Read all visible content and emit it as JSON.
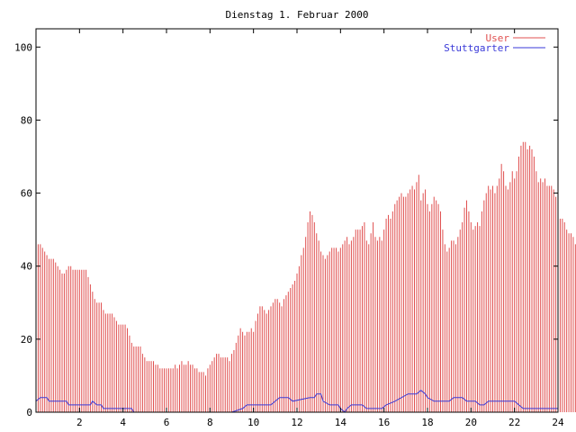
{
  "chart_data": {
    "type": "bar",
    "title": "Dienstag 1. Februar 2000",
    "xlabel": "",
    "ylabel": "",
    "xlim": [
      0,
      24
    ],
    "ylim": [
      0,
      105
    ],
    "x_ticks": [
      2,
      4,
      6,
      8,
      10,
      12,
      14,
      16,
      18,
      20,
      22,
      24
    ],
    "y_ticks": [
      0,
      20,
      40,
      60,
      80,
      100
    ],
    "grid": false,
    "legend_position": "top-right",
    "interval_hours": 0.1,
    "series": [
      {
        "name": "User",
        "style": "impulses",
        "color": "#e05050",
        "values": [
          51,
          46,
          46,
          45,
          44,
          43,
          42,
          42,
          42,
          41,
          40,
          39,
          38,
          38,
          39,
          40,
          40,
          39,
          39,
          39,
          39,
          39,
          39,
          39,
          37,
          35,
          33,
          31,
          30,
          30,
          30,
          28,
          27,
          27,
          27,
          27,
          26,
          25,
          24,
          24,
          24,
          24,
          23,
          21,
          19,
          18,
          18,
          18,
          18,
          16,
          15,
          14,
          14,
          14,
          14,
          13,
          13,
          12,
          12,
          12,
          12,
          12,
          12,
          12,
          13,
          12,
          13,
          14,
          13,
          13,
          14,
          13,
          13,
          12,
          12,
          11,
          11,
          11,
          10,
          12,
          13,
          14,
          15,
          16,
          16,
          15,
          15,
          15,
          15,
          14,
          16,
          17,
          19,
          21,
          23,
          22,
          21,
          22,
          22,
          23,
          22,
          25,
          27,
          29,
          29,
          28,
          27,
          28,
          29,
          30,
          31,
          31,
          30,
          29,
          31,
          32,
          33,
          34,
          35,
          36,
          38,
          40,
          43,
          45,
          48,
          52,
          55,
          54,
          52,
          49,
          47,
          44,
          43,
          42,
          43,
          44,
          45,
          45,
          45,
          44,
          45,
          46,
          47,
          48,
          46,
          47,
          48,
          50,
          50,
          50,
          51,
          52,
          47,
          46,
          49,
          52,
          48,
          47,
          48,
          47,
          50,
          53,
          54,
          53,
          55,
          57,
          58,
          59,
          60,
          59,
          59,
          60,
          61,
          62,
          61,
          63,
          65,
          58,
          60,
          61,
          57,
          55,
          57,
          59,
          58,
          57,
          55,
          50,
          46,
          44,
          45,
          47,
          47,
          46,
          48,
          50,
          52,
          56,
          58,
          55,
          52,
          50,
          51,
          52,
          51,
          55,
          58,
          60,
          62,
          61,
          62,
          60,
          62,
          64,
          68,
          66,
          62,
          61,
          63,
          66,
          64,
          66,
          70,
          73,
          74,
          74,
          72,
          73,
          72,
          70,
          66,
          63,
          64,
          63,
          64,
          62,
          62,
          62,
          61,
          59,
          56,
          53,
          53,
          52,
          50,
          49,
          49,
          48,
          46,
          46,
          45
        ]
      },
      {
        "name": "Stuttgarter",
        "style": "lines",
        "color": "#3a3ad8",
        "points": [
          [
            0,
            3
          ],
          [
            0.2,
            4
          ],
          [
            0.5,
            4
          ],
          [
            0.6,
            3
          ],
          [
            1.4,
            3
          ],
          [
            1.5,
            2
          ],
          [
            2.5,
            2
          ],
          [
            2.6,
            3
          ],
          [
            2.8,
            2
          ],
          [
            3.0,
            2
          ],
          [
            3.1,
            1
          ],
          [
            4.4,
            1
          ],
          [
            4.5,
            0
          ],
          [
            9.0,
            0
          ],
          [
            9.5,
            1
          ],
          [
            9.7,
            2
          ],
          [
            10.8,
            2
          ],
          [
            11.0,
            3
          ],
          [
            11.2,
            4
          ],
          [
            11.6,
            4
          ],
          [
            11.8,
            3
          ],
          [
            12.6,
            4
          ],
          [
            12.8,
            4
          ],
          [
            12.9,
            5
          ],
          [
            13.1,
            5
          ],
          [
            13.2,
            3
          ],
          [
            13.5,
            2
          ],
          [
            13.9,
            2
          ],
          [
            14.0,
            1
          ],
          [
            14.2,
            0
          ],
          [
            14.3,
            1
          ],
          [
            14.5,
            2
          ],
          [
            15.0,
            2
          ],
          [
            15.2,
            1
          ],
          [
            15.9,
            1
          ],
          [
            16.1,
            2
          ],
          [
            16.5,
            3
          ],
          [
            16.8,
            4
          ],
          [
            17.1,
            5
          ],
          [
            17.5,
            5
          ],
          [
            17.7,
            6
          ],
          [
            17.9,
            5
          ],
          [
            18.0,
            4
          ],
          [
            18.3,
            3
          ],
          [
            19.0,
            3
          ],
          [
            19.2,
            4
          ],
          [
            19.6,
            4
          ],
          [
            19.8,
            3
          ],
          [
            20.2,
            3
          ],
          [
            20.4,
            2
          ],
          [
            20.6,
            2
          ],
          [
            20.8,
            3
          ],
          [
            22.0,
            3
          ],
          [
            22.2,
            2
          ],
          [
            22.4,
            1
          ],
          [
            24,
            1
          ]
        ]
      }
    ]
  }
}
